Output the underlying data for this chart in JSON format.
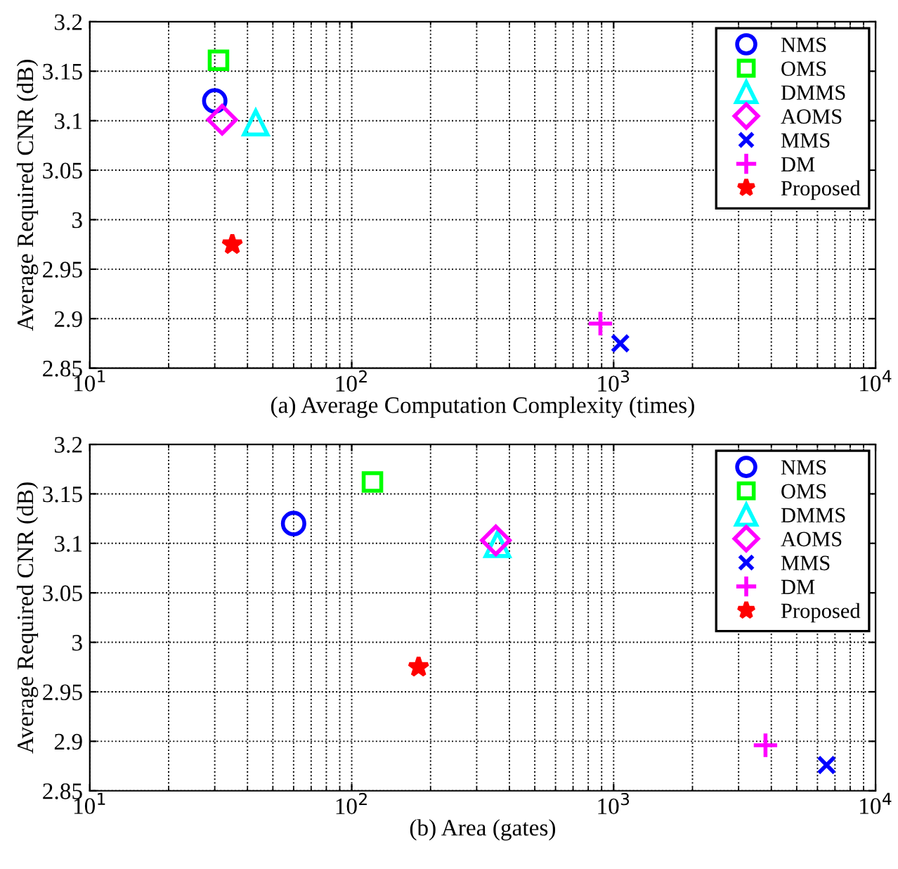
{
  "chart_data": [
    {
      "type": "scatter",
      "xlabel": "(a) Average Computation Complexity (times)",
      "ylabel": "Average Required CNR (dB)",
      "log": "x",
      "xlim": [
        10,
        10000
      ],
      "ylim": [
        2.85,
        3.2
      ],
      "xticks": [
        {
          "value": 10,
          "label": "10$^{1}$"
        },
        {
          "value": 100,
          "label": "10$^{2}$"
        },
        {
          "value": 1000,
          "label": "10$^{3}$"
        },
        {
          "value": 10000,
          "label": "10$^{4}$"
        }
      ],
      "yticks": [
        2.85,
        2.9,
        2.95,
        {
          "value": 3,
          "label": "3"
        },
        3.05,
        {
          "value": 3.1,
          "label": "3.1"
        },
        3.15,
        {
          "value": 3.2,
          "label": "3.2"
        }
      ],
      "grid": true,
      "legend": "top right",
      "series": [
        {
          "name": "NMS",
          "color": "#0000ff",
          "marker": "circle",
          "x": [
            30
          ],
          "values": [
            3.12
          ]
        },
        {
          "name": "OMS",
          "color": "#00ff00",
          "marker": "square",
          "x": [
            31
          ],
          "values": [
            3.161
          ]
        },
        {
          "name": "DMMS",
          "color": "#00ffff",
          "marker": "triangle",
          "x": [
            43
          ],
          "values": [
            3.098
          ]
        },
        {
          "name": "AOMS",
          "color": "#ff00ff",
          "marker": "diamond",
          "x": [
            32
          ],
          "values": [
            3.101
          ]
        },
        {
          "name": "MMS",
          "color": "#0000ff",
          "marker": "x",
          "x": [
            1060
          ],
          "values": [
            2.875
          ]
        },
        {
          "name": "DM",
          "color": "#ff00ff",
          "marker": "cross",
          "x": [
            890
          ],
          "values": [
            2.895
          ]
        },
        {
          "name": "Proposed",
          "color": "#ff0000",
          "marker": "star",
          "x": [
            35
          ],
          "values": [
            2.975
          ]
        }
      ]
    },
    {
      "type": "scatter",
      "xlabel": "(b) Area (gates)",
      "ylabel": "Average Required CNR (dB)",
      "log": "x",
      "xlim": [
        10,
        10000
      ],
      "ylim": [
        2.85,
        3.2
      ],
      "xticks": [
        {
          "value": 10,
          "label": "10$^{1}$"
        },
        {
          "value": 100,
          "label": "10$^{2}$"
        },
        {
          "value": 1000,
          "label": "10$^{3}$"
        },
        {
          "value": 10000,
          "label": "10$^{4}$"
        }
      ],
      "yticks": [
        2.85,
        2.9,
        2.95,
        {
          "value": 3,
          "label": "3"
        },
        3.05,
        {
          "value": 3.1,
          "label": "3.1"
        },
        3.15,
        {
          "value": 3.2,
          "label": "3.2"
        }
      ],
      "grid": true,
      "legend": "top right",
      "series": [
        {
          "name": "NMS",
          "color": "#0000ff",
          "marker": "circle",
          "x": [
            60
          ],
          "values": [
            3.12
          ]
        },
        {
          "name": "OMS",
          "color": "#00ff00",
          "marker": "square",
          "x": [
            120
          ],
          "values": [
            3.162
          ]
        },
        {
          "name": "DMMS",
          "color": "#00ffff",
          "marker": "triangle",
          "x": [
            360
          ],
          "values": [
            3.099
          ]
        },
        {
          "name": "AOMS",
          "color": "#ff00ff",
          "marker": "diamond",
          "x": [
            355
          ],
          "values": [
            3.103
          ]
        },
        {
          "name": "MMS",
          "color": "#0000ff",
          "marker": "x",
          "x": [
            6500
          ],
          "values": [
            2.876
          ]
        },
        {
          "name": "DM",
          "color": "#ff00ff",
          "marker": "cross",
          "x": [
            3800
          ],
          "values": [
            2.896
          ]
        },
        {
          "name": "Proposed",
          "color": "#ff0000",
          "marker": "star",
          "x": [
            180
          ],
          "values": [
            2.975
          ]
        }
      ]
    }
  ]
}
